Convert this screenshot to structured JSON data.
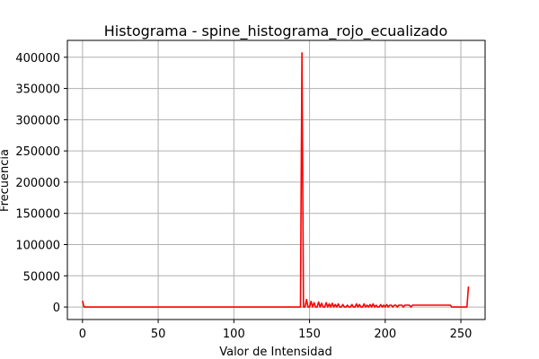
{
  "chart_data": {
    "type": "line",
    "title": "Histograma - spine_histograma_rojo_ecualizado",
    "xlabel": "Valor de Intensidad",
    "ylabel": "Frecuencia",
    "xlim": [
      -10,
      266
    ],
    "ylim": [
      -20000,
      427000
    ],
    "x_ticks": [
      0,
      50,
      100,
      150,
      200,
      250
    ],
    "y_ticks": [
      0,
      50000,
      100000,
      150000,
      200000,
      250000,
      300000,
      350000,
      400000
    ],
    "x_tick_labels": [
      "0",
      "50",
      "100",
      "150",
      "200",
      "250"
    ],
    "y_tick_labels": [
      "0",
      "50000",
      "100000",
      "150000",
      "200000",
      "250000",
      "300000",
      "350000",
      "400000"
    ],
    "grid": true,
    "series": [
      {
        "color": "#ff0000",
        "x": [
          0,
          1,
          143,
          144,
          145,
          146,
          147,
          148,
          149,
          150,
          151,
          152,
          153,
          154,
          155,
          156,
          157,
          158,
          159,
          160,
          161,
          162,
          163,
          164,
          165,
          166,
          167,
          168,
          169,
          170,
          171,
          172,
          173,
          174,
          175,
          176,
          177,
          178,
          179,
          180,
          181,
          182,
          183,
          184,
          185,
          186,
          187,
          188,
          189,
          190,
          191,
          192,
          193,
          194,
          195,
          196,
          197,
          198,
          199,
          200,
          201,
          202,
          203,
          204,
          205,
          206,
          207,
          208,
          209,
          210,
          211,
          212,
          213,
          214,
          215,
          216,
          217,
          218,
          219,
          220,
          221,
          222,
          223,
          224,
          225,
          226,
          227,
          228,
          229,
          230,
          231,
          232,
          233,
          234,
          235,
          236,
          237,
          238,
          239,
          240,
          241,
          242,
          243,
          244,
          245,
          253,
          254,
          255
        ],
        "y": [
          10000,
          0,
          0,
          0,
          407000,
          0,
          0,
          12000,
          0,
          0,
          9000,
          0,
          7000,
          0,
          0,
          8000,
          0,
          6000,
          0,
          0,
          7000,
          0,
          5000,
          0,
          6000,
          0,
          4000,
          0,
          5000,
          0,
          0,
          4000,
          0,
          0,
          3000,
          0,
          0,
          4000,
          0,
          0,
          5000,
          0,
          4000,
          0,
          0,
          5000,
          0,
          3000,
          0,
          4000,
          0,
          5000,
          0,
          3000,
          0,
          0,
          4000,
          0,
          3000,
          0,
          4000,
          0,
          3000,
          3000,
          0,
          3000,
          3000,
          0,
          3000,
          3000,
          3000,
          0,
          3000,
          3000,
          3000,
          3000,
          0,
          3000,
          3000,
          3000,
          3000,
          3000,
          3000,
          3000,
          3000,
          3000,
          3000,
          3000,
          3000,
          3000,
          3000,
          3000,
          3000,
          3000,
          3000,
          3000,
          3000,
          3000,
          3000,
          3000,
          3000,
          3000,
          3000,
          0,
          0,
          0,
          0,
          33000
        ]
      }
    ]
  }
}
